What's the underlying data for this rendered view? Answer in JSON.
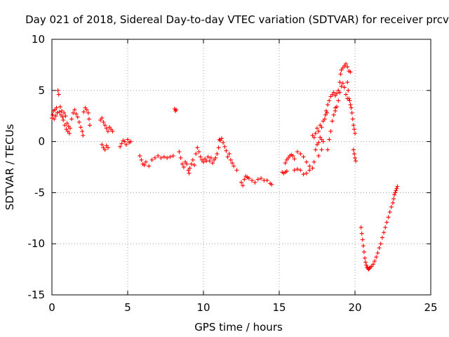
{
  "chart_data": {
    "type": "scatter",
    "title": "Day 021 of 2018, Sidereal Day-to-day VTEC variation (SDTVAR) for receiver prcv",
    "xlabel": "GPS time / hours",
    "ylabel": "SDTVAR / TECUs",
    "xlim": [
      0,
      25
    ],
    "ylim": [
      -15,
      10
    ],
    "xticks": [
      0,
      5,
      10,
      15,
      20,
      25
    ],
    "yticks": [
      10,
      5,
      0,
      -5,
      -10,
      -15
    ],
    "grid": true,
    "marker": "+",
    "color": "#ff0000",
    "series": [
      {
        "name": "SDTVAR",
        "points": [
          [
            0.0,
            2.3
          ],
          [
            0.05,
            2.6
          ],
          [
            0.1,
            3.0
          ],
          [
            0.15,
            2.2
          ],
          [
            0.2,
            3.1
          ],
          [
            0.25,
            2.5
          ],
          [
            0.3,
            3.3
          ],
          [
            0.35,
            2.8
          ],
          [
            0.4,
            5.0
          ],
          [
            0.45,
            4.6
          ],
          [
            0.5,
            2.9
          ],
          [
            0.55,
            3.4
          ],
          [
            0.6,
            2.6
          ],
          [
            0.65,
            3.0
          ],
          [
            0.7,
            2.4
          ],
          [
            0.75,
            2.1
          ],
          [
            0.8,
            2.8
          ],
          [
            0.85,
            1.6
          ],
          [
            0.9,
            2.5
          ],
          [
            0.95,
            1.2
          ],
          [
            1.0,
            1.8
          ],
          [
            1.05,
            1.0
          ],
          [
            1.1,
            1.5
          ],
          [
            1.15,
            0.8
          ],
          [
            1.2,
            1.3
          ],
          [
            1.3,
            2.2
          ],
          [
            1.4,
            2.8
          ],
          [
            1.5,
            3.1
          ],
          [
            1.6,
            2.7
          ],
          [
            1.7,
            2.4
          ],
          [
            1.8,
            1.9
          ],
          [
            1.9,
            1.4
          ],
          [
            2.0,
            1.0
          ],
          [
            2.05,
            0.6
          ],
          [
            2.1,
            2.9
          ],
          [
            2.2,
            3.3
          ],
          [
            2.3,
            3.1
          ],
          [
            2.4,
            2.8
          ],
          [
            2.45,
            2.2
          ],
          [
            2.5,
            1.6
          ],
          [
            3.2,
            2.1
          ],
          [
            3.3,
            2.3
          ],
          [
            3.4,
            1.9
          ],
          [
            3.5,
            1.6
          ],
          [
            3.6,
            1.3
          ],
          [
            3.7,
            1.0
          ],
          [
            3.8,
            1.4
          ],
          [
            3.9,
            1.2
          ],
          [
            4.0,
            1.0
          ],
          [
            3.3,
            -0.3
          ],
          [
            3.4,
            -0.6
          ],
          [
            3.5,
            -0.8
          ],
          [
            3.6,
            -0.4
          ],
          [
            3.7,
            -0.6
          ],
          [
            4.5,
            -0.5
          ],
          [
            4.6,
            -0.2
          ],
          [
            4.7,
            0.1
          ],
          [
            4.8,
            0.0
          ],
          [
            4.9,
            -0.3
          ],
          [
            5.0,
            0.2
          ],
          [
            5.1,
            -0.1
          ],
          [
            5.2,
            0.0
          ],
          [
            5.8,
            -1.4
          ],
          [
            5.9,
            -1.8
          ],
          [
            6.0,
            -2.2
          ],
          [
            6.1,
            -2.3
          ],
          [
            6.2,
            -2.0
          ],
          [
            6.4,
            -2.4
          ],
          [
            6.6,
            -1.8
          ],
          [
            6.8,
            -1.6
          ],
          [
            7.0,
            -1.4
          ],
          [
            7.2,
            -1.6
          ],
          [
            7.4,
            -1.5
          ],
          [
            7.6,
            -1.6
          ],
          [
            7.8,
            -1.5
          ],
          [
            8.0,
            -1.4
          ],
          [
            8.1,
            3.2
          ],
          [
            8.15,
            3.0
          ],
          [
            8.2,
            3.1
          ],
          [
            8.4,
            -1.0
          ],
          [
            8.5,
            -1.6
          ],
          [
            8.6,
            -2.2
          ],
          [
            8.7,
            -2.5
          ],
          [
            8.8,
            -2.0
          ],
          [
            8.9,
            -2.2
          ],
          [
            9.0,
            -2.8
          ],
          [
            9.05,
            -3.1
          ],
          [
            9.1,
            -2.6
          ],
          [
            9.2,
            -2.2
          ],
          [
            9.3,
            -1.8
          ],
          [
            9.4,
            -2.3
          ],
          [
            9.5,
            -1.2
          ],
          [
            9.6,
            -0.6
          ],
          [
            9.7,
            -1.0
          ],
          [
            9.8,
            -1.5
          ],
          [
            9.9,
            -1.8
          ],
          [
            10.0,
            -2.0
          ],
          [
            10.1,
            -1.7
          ],
          [
            10.2,
            -1.9
          ],
          [
            10.3,
            -1.5
          ],
          [
            10.4,
            -1.9
          ],
          [
            10.5,
            -1.6
          ],
          [
            10.6,
            -2.1
          ],
          [
            10.7,
            -1.8
          ],
          [
            10.8,
            -1.6
          ],
          [
            10.9,
            -1.2
          ],
          [
            11.0,
            -0.6
          ],
          [
            11.05,
            0.2
          ],
          [
            11.1,
            0.1
          ],
          [
            11.2,
            0.3
          ],
          [
            11.3,
            -0.1
          ],
          [
            11.4,
            -0.5
          ],
          [
            11.5,
            -0.9
          ],
          [
            11.6,
            -1.5
          ],
          [
            11.7,
            -1.2
          ],
          [
            11.8,
            -1.8
          ],
          [
            11.9,
            -2.1
          ],
          [
            12.0,
            -2.4
          ],
          [
            12.2,
            -2.8
          ],
          [
            12.5,
            -4.0
          ],
          [
            12.6,
            -4.3
          ],
          [
            12.7,
            -3.7
          ],
          [
            12.8,
            -3.4
          ],
          [
            12.9,
            -3.5
          ],
          [
            13.0,
            -3.6
          ],
          [
            13.2,
            -3.8
          ],
          [
            13.4,
            -4.0
          ],
          [
            13.6,
            -3.7
          ],
          [
            13.8,
            -3.6
          ],
          [
            14.0,
            -3.8
          ],
          [
            14.2,
            -3.8
          ],
          [
            14.4,
            -4.1
          ],
          [
            14.5,
            -4.2
          ],
          [
            15.2,
            -3.0
          ],
          [
            15.3,
            -3.1
          ],
          [
            15.4,
            -3.0
          ],
          [
            15.5,
            -2.9
          ],
          [
            15.4,
            -2.1
          ],
          [
            15.5,
            -1.8
          ],
          [
            15.6,
            -1.6
          ],
          [
            15.7,
            -1.4
          ],
          [
            15.8,
            -1.3
          ],
          [
            15.9,
            -1.4
          ],
          [
            16.0,
            -1.7
          ],
          [
            16.0,
            -2.8
          ],
          [
            16.2,
            -2.7
          ],
          [
            16.4,
            -2.8
          ],
          [
            16.6,
            -3.2
          ],
          [
            16.8,
            -3.1
          ],
          [
            17.0,
            -2.8
          ],
          [
            16.2,
            -1.0
          ],
          [
            16.4,
            -1.2
          ],
          [
            16.6,
            -1.5
          ],
          [
            16.8,
            -2.0
          ],
          [
            17.0,
            -2.4
          ],
          [
            17.2,
            -2.6
          ],
          [
            17.3,
            -2.0
          ],
          [
            17.4,
            -0.8
          ],
          [
            17.5,
            -0.3
          ],
          [
            17.6,
            -0.1
          ],
          [
            17.7,
            0.4
          ],
          [
            17.8,
            0.2
          ],
          [
            17.6,
            -1.4
          ],
          [
            17.8,
            -0.8
          ],
          [
            17.9,
            0.0
          ],
          [
            17.2,
            0.6
          ],
          [
            17.3,
            0.4
          ],
          [
            17.4,
            0.8
          ],
          [
            17.5,
            1.3
          ],
          [
            17.6,
            1.0
          ],
          [
            17.7,
            1.6
          ],
          [
            17.8,
            1.4
          ],
          [
            17.9,
            2.0
          ],
          [
            18.0,
            2.2
          ],
          [
            18.05,
            2.6
          ],
          [
            18.1,
            3.0
          ],
          [
            18.15,
            2.8
          ],
          [
            18.2,
            3.6
          ],
          [
            18.3,
            4.0
          ],
          [
            18.4,
            4.4
          ],
          [
            18.5,
            4.6
          ],
          [
            18.6,
            4.8
          ],
          [
            18.7,
            4.5
          ],
          [
            18.8,
            4.7
          ],
          [
            18.9,
            5.0
          ],
          [
            19.0,
            5.8
          ],
          [
            19.05,
            6.6
          ],
          [
            19.1,
            7.0
          ],
          [
            19.2,
            7.2
          ],
          [
            19.3,
            7.4
          ],
          [
            19.4,
            7.6
          ],
          [
            19.5,
            7.3
          ],
          [
            19.6,
            6.9
          ],
          [
            19.7,
            6.8
          ],
          [
            19.5,
            5.8
          ],
          [
            19.55,
            5.0
          ],
          [
            19.6,
            4.2
          ],
          [
            19.65,
            4.0
          ],
          [
            19.7,
            3.6
          ],
          [
            19.75,
            3.3
          ],
          [
            19.8,
            2.8
          ],
          [
            19.85,
            2.2
          ],
          [
            19.9,
            1.6
          ],
          [
            19.95,
            1.2
          ],
          [
            20.0,
            0.8
          ],
          [
            18.7,
            3.0
          ],
          [
            18.8,
            3.4
          ],
          [
            18.9,
            4.0
          ],
          [
            19.0,
            4.8
          ],
          [
            19.1,
            5.4
          ],
          [
            19.2,
            5.7
          ],
          [
            19.3,
            5.3
          ],
          [
            19.4,
            4.6
          ],
          [
            19.5,
            4.2
          ],
          [
            18.2,
            -0.8
          ],
          [
            18.3,
            0.2
          ],
          [
            18.4,
            1.0
          ],
          [
            18.5,
            2.0
          ],
          [
            18.6,
            2.6
          ],
          [
            18.7,
            3.3
          ],
          [
            19.9,
            -0.8
          ],
          [
            19.95,
            -1.2
          ],
          [
            20.0,
            -1.6
          ],
          [
            20.05,
            -1.9
          ],
          [
            20.4,
            -8.4
          ],
          [
            20.45,
            -9.0
          ],
          [
            20.5,
            -9.6
          ],
          [
            20.55,
            -10.2
          ],
          [
            20.6,
            -10.8
          ],
          [
            20.65,
            -11.4
          ],
          [
            20.7,
            -11.8
          ],
          [
            20.75,
            -12.1
          ],
          [
            20.8,
            -12.3
          ],
          [
            20.85,
            -12.4
          ],
          [
            20.9,
            -12.5
          ],
          [
            20.95,
            -12.4
          ],
          [
            21.0,
            -12.3
          ],
          [
            21.1,
            -12.2
          ],
          [
            21.2,
            -12.0
          ],
          [
            21.3,
            -11.7
          ],
          [
            21.4,
            -11.3
          ],
          [
            21.5,
            -10.9
          ],
          [
            21.6,
            -10.4
          ],
          [
            21.7,
            -10.0
          ],
          [
            21.8,
            -9.4
          ],
          [
            21.9,
            -8.9
          ],
          [
            22.0,
            -8.4
          ],
          [
            22.1,
            -7.9
          ],
          [
            22.2,
            -7.4
          ],
          [
            22.3,
            -6.9
          ],
          [
            22.4,
            -6.4
          ],
          [
            22.5,
            -6.0
          ],
          [
            22.55,
            -5.6
          ],
          [
            22.6,
            -5.2
          ],
          [
            22.65,
            -5.0
          ],
          [
            22.7,
            -4.8
          ],
          [
            22.75,
            -4.6
          ],
          [
            22.8,
            -4.4
          ]
        ]
      }
    ]
  }
}
